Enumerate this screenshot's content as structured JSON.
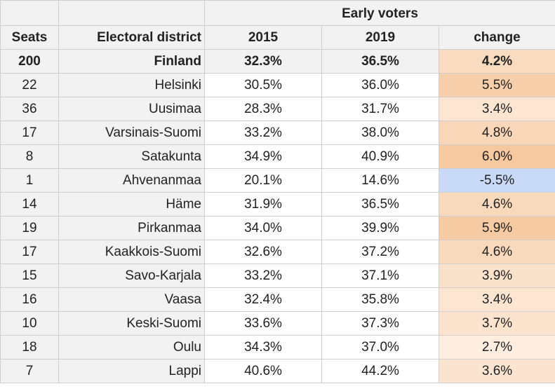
{
  "table": {
    "group_header": "Early voters",
    "headers": {
      "seats": "Seats",
      "district": "Electoral district",
      "y2015": "2015",
      "y2019": "2019",
      "change": "change"
    },
    "total": {
      "seats": "200",
      "district": "Finland",
      "y2015": "32.3%",
      "y2019": "36.5%",
      "change": "4.2%"
    },
    "rows": [
      {
        "seats": "22",
        "district": "Helsinki",
        "y2015": "30.5%",
        "y2019": "36.0%",
        "change": "5.5%"
      },
      {
        "seats": "36",
        "district": "Uusimaa",
        "y2015": "28.3%",
        "y2019": "31.7%",
        "change": "3.4%"
      },
      {
        "seats": "17",
        "district": "Varsinais-Suomi",
        "y2015": "33.2%",
        "y2019": "38.0%",
        "change": "4.8%"
      },
      {
        "seats": "8",
        "district": "Satakunta",
        "y2015": "34.9%",
        "y2019": "40.9%",
        "change": "6.0%"
      },
      {
        "seats": "1",
        "district": "Ahvenanmaa",
        "y2015": "20.1%",
        "y2019": "14.6%",
        "change": "-5.5%"
      },
      {
        "seats": "14",
        "district": "Häme",
        "y2015": "31.9%",
        "y2019": "36.5%",
        "change": "4.6%"
      },
      {
        "seats": "19",
        "district": "Pirkanmaa",
        "y2015": "34.0%",
        "y2019": "39.9%",
        "change": "5.9%"
      },
      {
        "seats": "17",
        "district": "Kaakkois-Suomi",
        "y2015": "32.6%",
        "y2019": "37.2%",
        "change": "4.6%"
      },
      {
        "seats": "15",
        "district": "Savo-Karjala",
        "y2015": "33.2%",
        "y2019": "37.1%",
        "change": "3.9%"
      },
      {
        "seats": "16",
        "district": "Vaasa",
        "y2015": "32.4%",
        "y2019": "35.8%",
        "change": "3.4%"
      },
      {
        "seats": "10",
        "district": "Keski-Suomi",
        "y2015": "33.6%",
        "y2019": "37.3%",
        "change": "3.7%"
      },
      {
        "seats": "18",
        "district": "Oulu",
        "y2015": "34.3%",
        "y2019": "37.0%",
        "change": "2.7%"
      },
      {
        "seats": "7",
        "district": "Lappi",
        "y2015": "40.6%",
        "y2019": "44.2%",
        "change": "3.6%"
      }
    ]
  },
  "colors": {
    "header_bg": "#f2f2f2",
    "positive_max": "#f6c9a0",
    "positive_min": "#fdeee0",
    "negative": "#c9daf8",
    "grid": "#cfcfcf"
  }
}
